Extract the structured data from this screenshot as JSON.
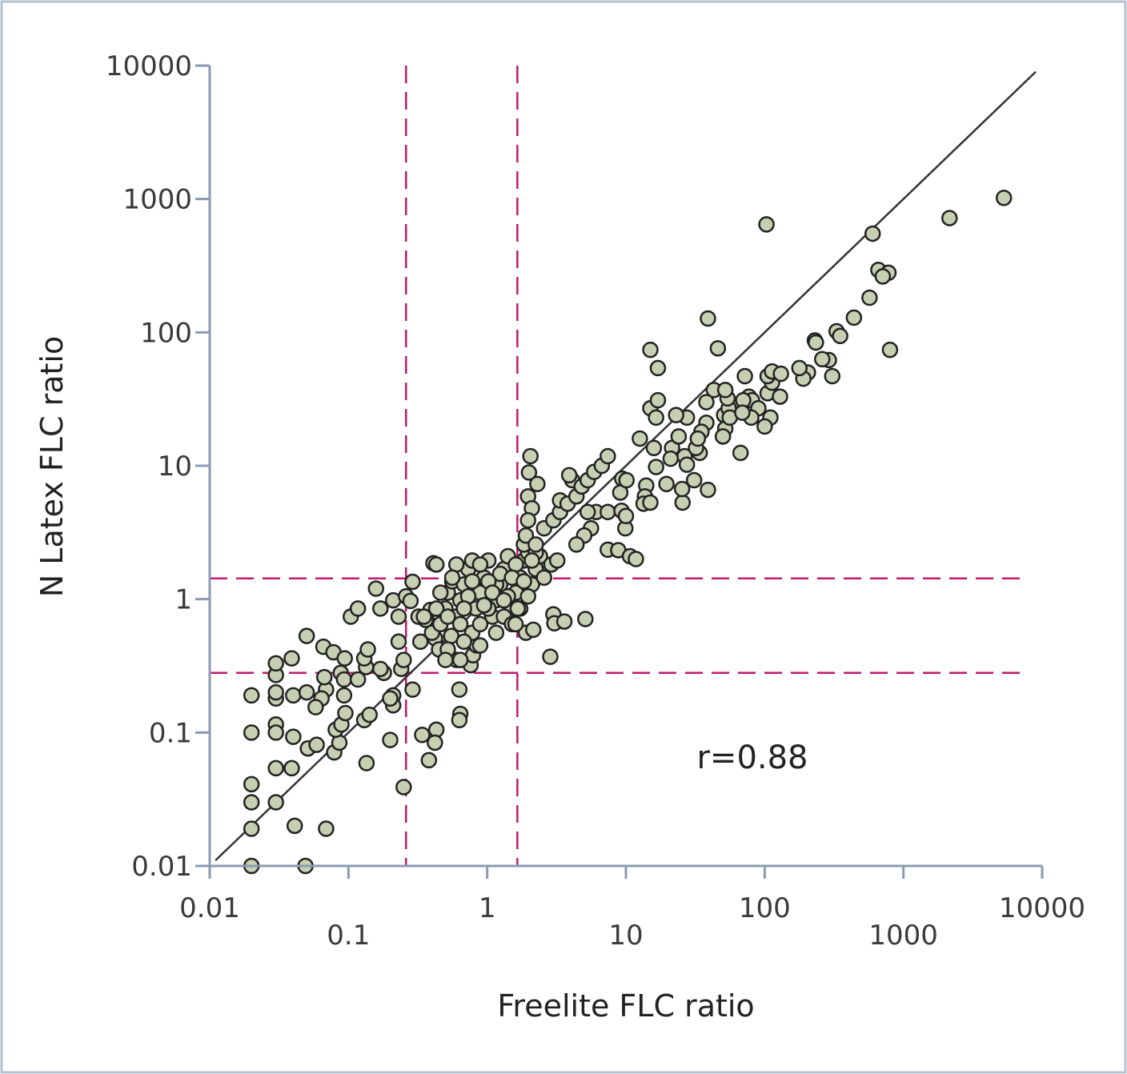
{
  "chart_data": {
    "type": "scatter",
    "title": "",
    "xlabel": "Freelite FLC ratio",
    "ylabel": "N Latex FLC ratio",
    "xscale": "log",
    "yscale": "log",
    "xlim": [
      0.01,
      10000
    ],
    "ylim": [
      0.01,
      10000
    ],
    "xticks": [
      "0.01",
      "0.1",
      "1",
      "10",
      "100",
      "1000",
      "10000"
    ],
    "yticks": [
      "0.01",
      "0.1",
      "1",
      "10",
      "100",
      "1000",
      "10000"
    ],
    "grid": false,
    "annotation": "r=0.88",
    "reference_line": {
      "type": "identity y=x",
      "x_range": [
        0.011,
        9000
      ],
      "color": "#333333"
    },
    "cutoff_lines": {
      "vertical_x": [
        0.26,
        1.65
      ],
      "horizontal_y": [
        0.28,
        1.43
      ],
      "color": "#c2186e",
      "style": "dashed"
    },
    "marker": {
      "fill": "#c6cfb2",
      "stroke": "#222222"
    },
    "points": [
      [
        0.02,
        0.01
      ],
      [
        0.049,
        0.01
      ],
      [
        0.02,
        0.019
      ],
      [
        0.069,
        0.019
      ],
      [
        0.041,
        0.02
      ],
      [
        0.25,
        0.039
      ],
      [
        0.02,
        0.03
      ],
      [
        0.03,
        0.03
      ],
      [
        0.02,
        0.041
      ],
      [
        0.03,
        0.054
      ],
      [
        0.039,
        0.054
      ],
      [
        0.02,
        0.1
      ],
      [
        0.03,
        0.115
      ],
      [
        0.03,
        0.1
      ],
      [
        0.04,
        0.093
      ],
      [
        0.051,
        0.076
      ],
      [
        0.059,
        0.081
      ],
      [
        0.079,
        0.071
      ],
      [
        0.086,
        0.084
      ],
      [
        0.135,
        0.059
      ],
      [
        0.2,
        0.088
      ],
      [
        0.081,
        0.105
      ],
      [
        0.089,
        0.115
      ],
      [
        0.13,
        0.124
      ],
      [
        0.142,
        0.136
      ],
      [
        0.34,
        0.096
      ],
      [
        0.43,
        0.105
      ],
      [
        0.42,
        0.084
      ],
      [
        0.38,
        0.062
      ],
      [
        0.64,
        0.138
      ],
      [
        0.63,
        0.124
      ],
      [
        0.63,
        0.21
      ],
      [
        0.02,
        0.19
      ],
      [
        0.03,
        0.18
      ],
      [
        0.03,
        0.2
      ],
      [
        0.04,
        0.19
      ],
      [
        0.05,
        0.2
      ],
      [
        0.069,
        0.21
      ],
      [
        0.093,
        0.19
      ],
      [
        0.21,
        0.19
      ],
      [
        0.21,
        0.16
      ],
      [
        0.29,
        0.21
      ],
      [
        0.2,
        0.18
      ],
      [
        0.095,
        0.14
      ],
      [
        0.064,
        0.18
      ],
      [
        0.058,
        0.155
      ],
      [
        0.067,
        0.26
      ],
      [
        0.088,
        0.28
      ],
      [
        0.134,
        0.31
      ],
      [
        0.18,
        0.28
      ],
      [
        0.24,
        0.3
      ],
      [
        0.13,
        0.36
      ],
      [
        0.17,
        0.3
      ],
      [
        0.03,
        0.27
      ],
      [
        0.039,
        0.36
      ],
      [
        0.05,
        0.53
      ],
      [
        0.03,
        0.33
      ],
      [
        0.066,
        0.44
      ],
      [
        0.078,
        0.4
      ],
      [
        0.094,
        0.36
      ],
      [
        0.093,
        0.25
      ],
      [
        0.117,
        0.25
      ],
      [
        0.138,
        0.42
      ],
      [
        0.104,
        0.74
      ],
      [
        0.117,
        0.85
      ],
      [
        0.158,
        1.2
      ],
      [
        0.17,
        0.85
      ],
      [
        0.21,
        0.98
      ],
      [
        0.23,
        0.74
      ],
      [
        0.29,
        1.35
      ],
      [
        0.41,
        1.86
      ],
      [
        0.26,
        1.05
      ],
      [
        0.28,
        0.97
      ],
      [
        0.32,
        0.74
      ],
      [
        0.41,
        0.63
      ],
      [
        0.42,
        0.51
      ],
      [
        0.45,
        0.42
      ],
      [
        0.55,
        0.53
      ],
      [
        0.6,
        0.35
      ],
      [
        0.76,
        0.32
      ],
      [
        0.79,
        0.38
      ],
      [
        0.84,
        0.45
      ],
      [
        0.23,
        0.48
      ],
      [
        0.25,
        0.35
      ],
      [
        0.39,
        0.83
      ],
      [
        0.36,
        0.7
      ],
      [
        0.4,
        0.56
      ],
      [
        0.46,
        0.65
      ],
      [
        0.5,
        0.85
      ],
      [
        0.52,
        1.12
      ],
      [
        0.56,
        1.36
      ],
      [
        0.6,
        0.74
      ],
      [
        0.64,
        0.98
      ],
      [
        0.68,
        1.29
      ],
      [
        0.73,
        1.68
      ],
      [
        0.78,
        0.56
      ],
      [
        0.83,
        0.85
      ],
      [
        0.89,
        1.12
      ],
      [
        0.95,
        1.45
      ],
      [
        1.02,
        1.95
      ],
      [
        1.09,
        0.74
      ],
      [
        1.16,
        0.98
      ],
      [
        1.24,
        1.29
      ],
      [
        1.32,
        1.68
      ],
      [
        1.41,
        2.1
      ],
      [
        1.51,
        0.85
      ],
      [
        1.61,
        1.12
      ],
      [
        1.73,
        1.45
      ],
      [
        1.84,
        1.95
      ],
      [
        1.97,
        2.24
      ],
      [
        2.1,
        1.29
      ],
      [
        2.24,
        1.68
      ],
      [
        2.4,
        2.1
      ],
      [
        2.57,
        1.45
      ],
      [
        0.52,
        0.42
      ],
      [
        0.68,
        0.48
      ],
      [
        0.89,
        0.65
      ],
      [
        1.02,
        0.85
      ],
      [
        1.16,
        0.56
      ],
      [
        1.32,
        0.74
      ],
      [
        1.51,
        0.65
      ],
      [
        1.73,
        0.85
      ],
      [
        0.78,
        1.95
      ],
      [
        0.89,
        1.82
      ],
      [
        0.6,
        1.82
      ],
      [
        0.46,
        1.12
      ],
      [
        0.43,
        0.85
      ],
      [
        0.35,
        0.74
      ],
      [
        0.33,
        0.48
      ],
      [
        0.5,
        0.35
      ],
      [
        0.64,
        0.35
      ],
      [
        0.89,
        0.45
      ],
      [
        1.16,
        1.29
      ],
      [
        1.41,
        1.05
      ],
      [
        1.97,
        1.05
      ],
      [
        2.9,
        1.82
      ],
      [
        3.2,
        1.95
      ],
      [
        0.43,
        1.82
      ],
      [
        0.56,
        1.45
      ],
      [
        0.73,
        1.05
      ],
      [
        0.95,
        0.9
      ],
      [
        1.24,
        1.55
      ],
      [
        1.61,
        1.82
      ],
      [
        1.84,
        2.57
      ],
      [
        2.24,
        2.24
      ],
      [
        1.02,
        1.36
      ],
      [
        0.78,
        1.36
      ],
      [
        1.09,
        1.12
      ],
      [
        1.32,
        0.98
      ],
      [
        0.64,
        0.65
      ],
      [
        0.52,
        0.74
      ],
      [
        1.51,
        1.45
      ],
      [
        1.84,
        1.36
      ],
      [
        2.1,
        1.95
      ],
      [
        0.68,
        0.85
      ],
      [
        1.9,
        0.56
      ],
      [
        2.15,
        0.59
      ],
      [
        3.0,
        0.77
      ],
      [
        3.05,
        0.66
      ],
      [
        3.6,
        0.68
      ],
      [
        5.1,
        0.71
      ],
      [
        2.85,
        0.37
      ],
      [
        1.66,
        0.85
      ],
      [
        1.6,
        0.65
      ],
      [
        2.05,
        11.8
      ],
      [
        2.0,
        8.9
      ],
      [
        1.97,
        5.9
      ],
      [
        2.1,
        4.8
      ],
      [
        2.3,
        7.3
      ],
      [
        1.97,
        3.9
      ],
      [
        1.9,
        3.0
      ],
      [
        2.24,
        2.57
      ],
      [
        2.57,
        3.4
      ],
      [
        3.0,
        3.9
      ],
      [
        3.35,
        4.5
      ],
      [
        3.35,
        5.5
      ],
      [
        3.8,
        5.2
      ],
      [
        4.4,
        5.9
      ],
      [
        4.1,
        7.8
      ],
      [
        4.8,
        7.0
      ],
      [
        3.9,
        8.5
      ],
      [
        5.3,
        7.8
      ],
      [
        5.9,
        9.0
      ],
      [
        6.7,
        10
      ],
      [
        6.1,
        4.5
      ],
      [
        5.6,
        3.4
      ],
      [
        5.0,
        3.0
      ],
      [
        4.4,
        2.57
      ],
      [
        5.3,
        4.5
      ],
      [
        7.4,
        4.5
      ],
      [
        7.4,
        11.8
      ],
      [
        9.4,
        8.0
      ],
      [
        9.1,
        6.3
      ],
      [
        10.1,
        7.8
      ],
      [
        9.3,
        4.6
      ],
      [
        9.9,
        3.4
      ],
      [
        10,
        4.2
      ],
      [
        7.4,
        2.35
      ],
      [
        8.8,
        2.33
      ],
      [
        10.7,
        2.1
      ],
      [
        11.8,
        2.0
      ],
      [
        14,
        7.1
      ],
      [
        13.7,
        5.9
      ],
      [
        13.4,
        5.2
      ],
      [
        15,
        5.3
      ],
      [
        15,
        27
      ],
      [
        17,
        31
      ],
      [
        12.6,
        16
      ],
      [
        15.9,
        13.6
      ],
      [
        21.5,
        13.6
      ],
      [
        24,
        16.6
      ],
      [
        26.5,
        11.8
      ],
      [
        27.5,
        10.2
      ],
      [
        15,
        74
      ],
      [
        17,
        54
      ],
      [
        39,
        127
      ],
      [
        46,
        76
      ],
      [
        51,
        24
      ],
      [
        52,
        19
      ],
      [
        50,
        16.6
      ],
      [
        38,
        21
      ],
      [
        35,
        18
      ],
      [
        27.5,
        23
      ],
      [
        34,
        12.5
      ],
      [
        31,
        7.8
      ],
      [
        39,
        6.6
      ],
      [
        23,
        24
      ],
      [
        16.5,
        23
      ],
      [
        21,
        11.3
      ],
      [
        16.5,
        9.8
      ],
      [
        19.6,
        7.3
      ],
      [
        25.6,
        5.3
      ],
      [
        25.4,
        6.7
      ],
      [
        32,
        13.6
      ],
      [
        33,
        16
      ],
      [
        43,
        37
      ],
      [
        55,
        27
      ],
      [
        77,
        33
      ],
      [
        81,
        31
      ],
      [
        70,
        31
      ],
      [
        105,
        35
      ],
      [
        113,
        42
      ],
      [
        129,
        33
      ],
      [
        90,
        27
      ],
      [
        110,
        23
      ],
      [
        100,
        19.7
      ],
      [
        105,
        47
      ],
      [
        72,
        47
      ],
      [
        113,
        51
      ],
      [
        80,
        23
      ],
      [
        56,
        23
      ],
      [
        67,
        12.5
      ],
      [
        38,
        30
      ],
      [
        54,
        32
      ],
      [
        69,
        25
      ],
      [
        52,
        37
      ],
      [
        103,
        645
      ],
      [
        205,
        50
      ],
      [
        190,
        45
      ],
      [
        230,
        87
      ],
      [
        290,
        62
      ],
      [
        330,
        102
      ],
      [
        350,
        94
      ],
      [
        440,
        129
      ],
      [
        234,
        84
      ],
      [
        260,
        63
      ],
      [
        307,
        47
      ],
      [
        570,
        182
      ],
      [
        660,
        294
      ],
      [
        780,
        280
      ],
      [
        710,
        263
      ],
      [
        800,
        74
      ],
      [
        600,
        550
      ],
      [
        2150,
        720
      ],
      [
        5300,
        1020
      ],
      [
        178,
        54
      ],
      [
        131,
        49
      ]
    ]
  }
}
